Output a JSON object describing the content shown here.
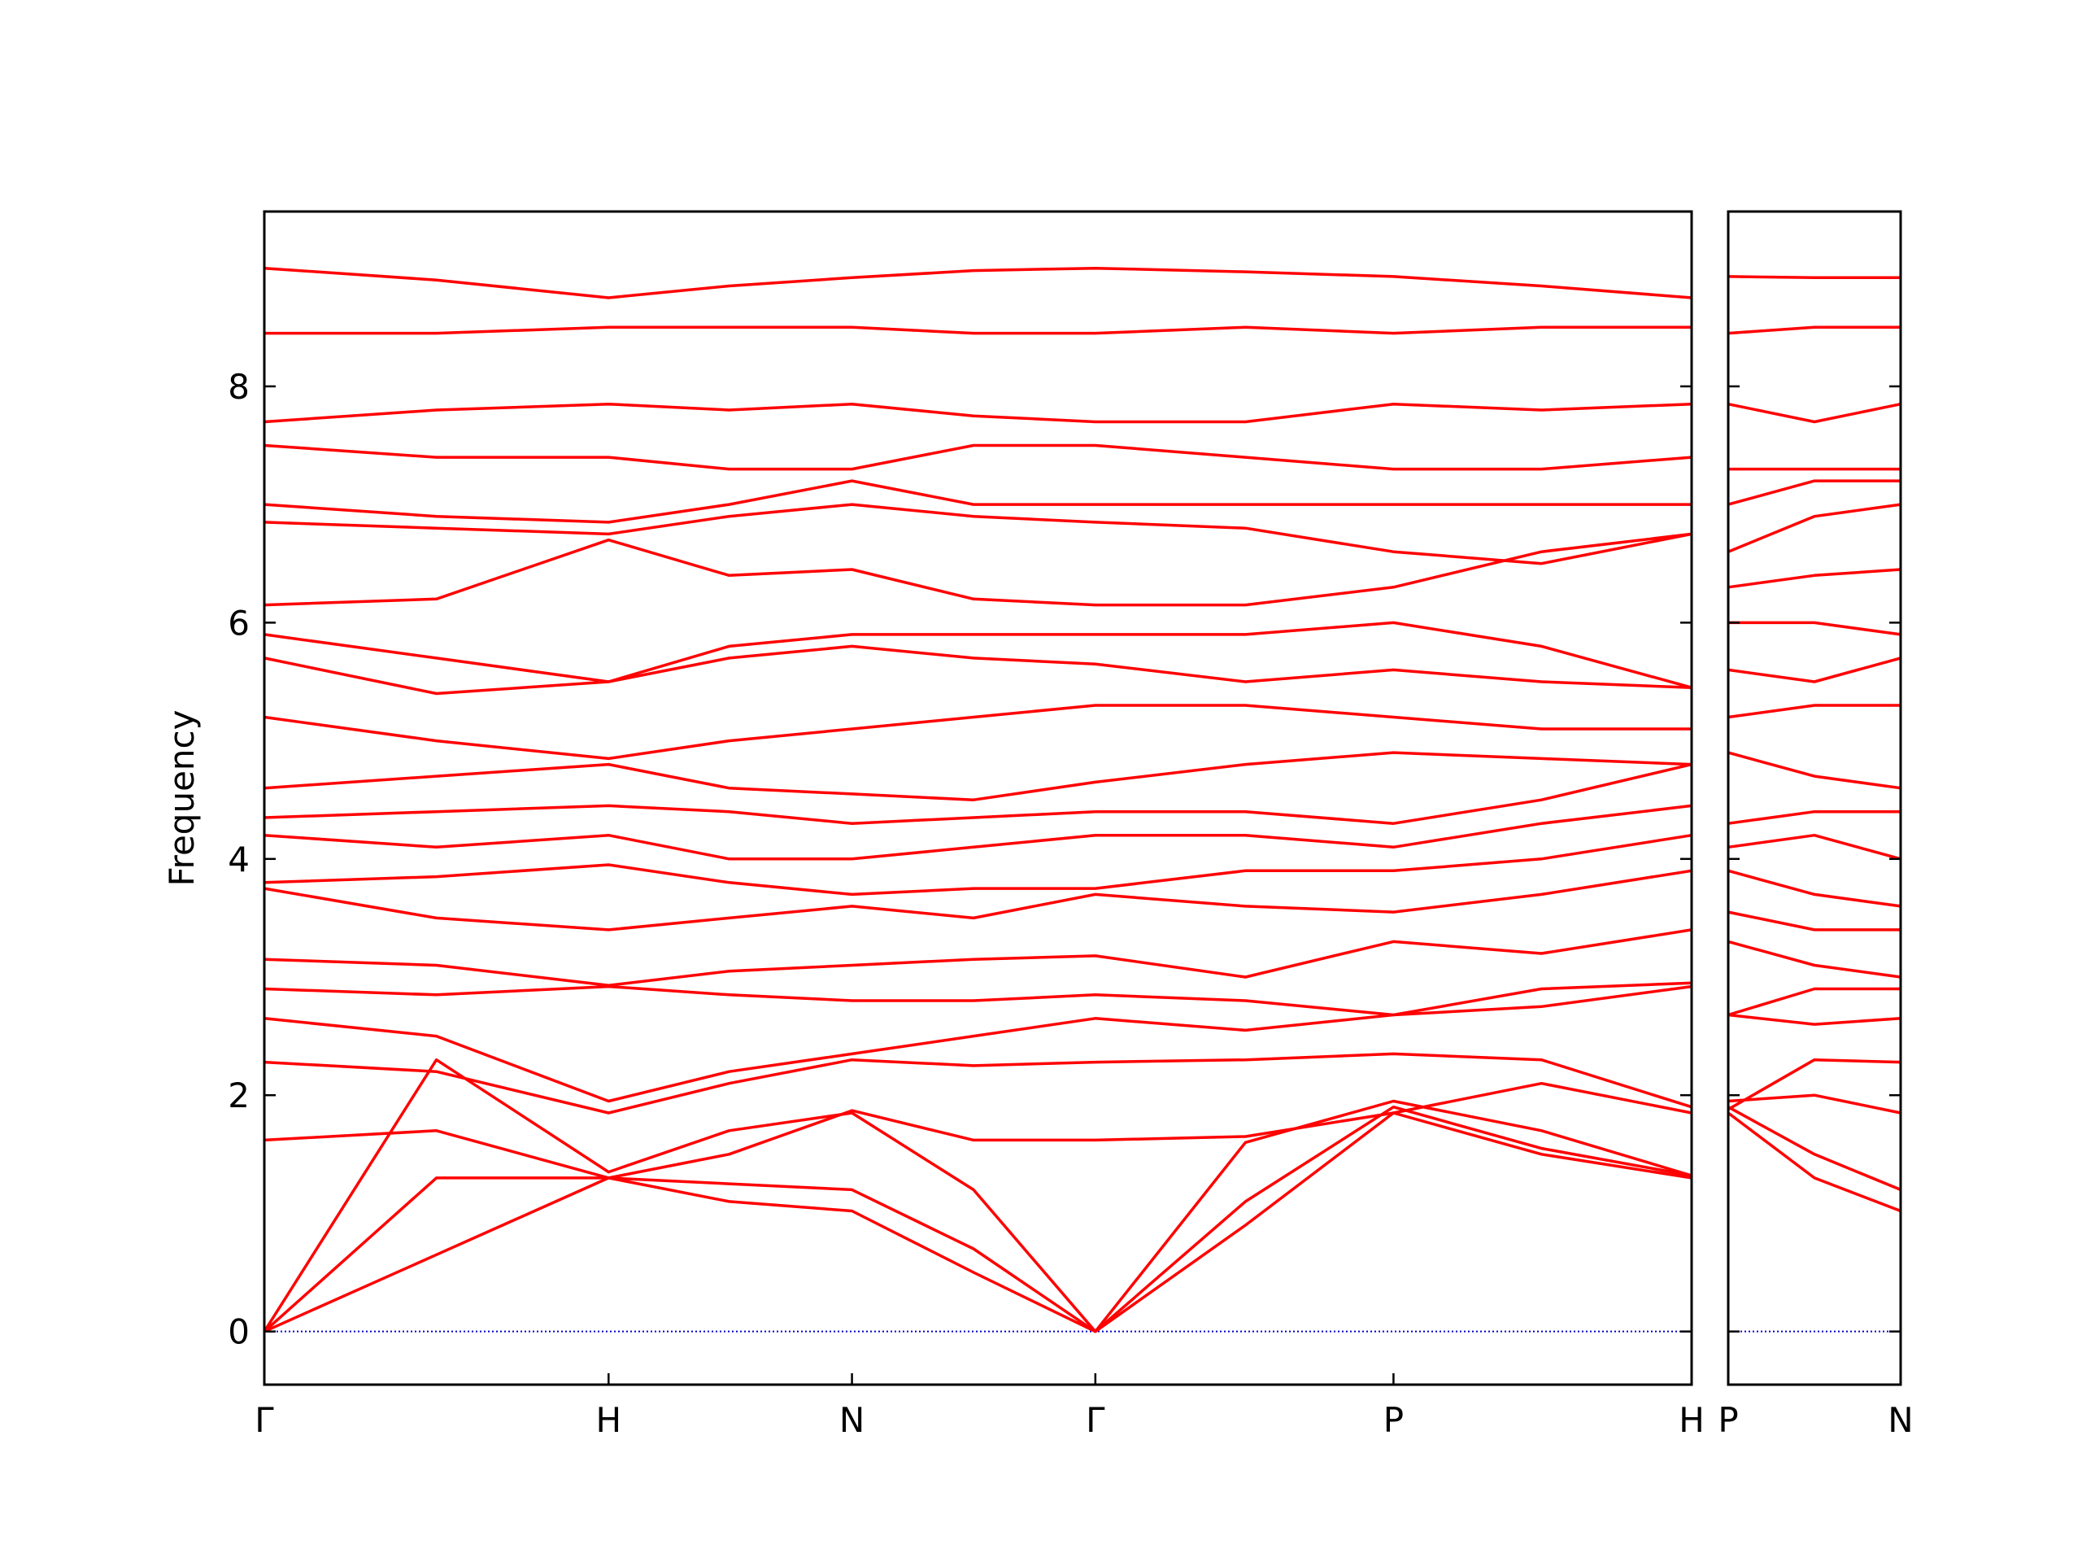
{
  "chart_data": [
    {
      "type": "line",
      "color": "#ff0000",
      "ylabel": "Frequency",
      "x": [
        0,
        0.5,
        1,
        1.35,
        1.707,
        2.06,
        2.414,
        2.85,
        3.28,
        3.71,
        4.146
      ],
      "xlim": [
        0,
        4.146
      ],
      "ylim": [
        -0.45,
        9.48
      ],
      "xticks": [
        {
          "value": 0,
          "label": "Γ"
        },
        {
          "value": 1,
          "label": "H"
        },
        {
          "value": 1.707,
          "label": "N"
        },
        {
          "value": 2.414,
          "label": "Γ"
        },
        {
          "value": 3.28,
          "label": "P"
        },
        {
          "value": 4.146,
          "label": "H"
        }
      ],
      "yticks": [
        0,
        2,
        4,
        6,
        8
      ],
      "series": [
        {
          "values": [
            0,
            0.65,
            1.3,
            1.1,
            1.02,
            0.5,
            0,
            0.9,
            1.85,
            1.5,
            1.3
          ]
        },
        {
          "values": [
            0,
            1.3,
            1.3,
            1.25,
            1.2,
            0.7,
            0,
            1.1,
            1.9,
            1.55,
            1.32
          ]
        },
        {
          "values": [
            0,
            2.3,
            1.35,
            1.7,
            1.85,
            1.2,
            0,
            1.6,
            1.95,
            1.7,
            1.32
          ]
        },
        {
          "values": [
            1.62,
            1.7,
            1.3,
            1.5,
            1.87,
            1.62,
            1.62,
            1.65,
            1.85,
            2.1,
            1.85
          ]
        },
        {
          "values": [
            2.28,
            2.2,
            1.85,
            2.1,
            2.3,
            2.25,
            2.28,
            2.3,
            2.35,
            2.3,
            1.9
          ]
        },
        {
          "values": [
            2.65,
            2.5,
            1.95,
            2.2,
            2.35,
            2.5,
            2.65,
            2.55,
            2.68,
            2.75,
            2.92
          ]
        },
        {
          "values": [
            2.9,
            2.85,
            2.92,
            2.85,
            2.8,
            2.8,
            2.85,
            2.8,
            2.68,
            2.9,
            2.95
          ]
        },
        {
          "values": [
            3.15,
            3.1,
            2.93,
            3.05,
            3.1,
            3.15,
            3.18,
            3.0,
            3.3,
            3.2,
            3.4
          ]
        },
        {
          "values": [
            3.75,
            3.5,
            3.4,
            3.5,
            3.6,
            3.5,
            3.7,
            3.6,
            3.55,
            3.7,
            3.9
          ]
        },
        {
          "values": [
            3.8,
            3.85,
            3.95,
            3.8,
            3.7,
            3.75,
            3.75,
            3.9,
            3.9,
            4.0,
            4.2
          ]
        },
        {
          "values": [
            4.2,
            4.1,
            4.2,
            4.0,
            4.0,
            4.1,
            4.2,
            4.2,
            4.1,
            4.3,
            4.45
          ]
        },
        {
          "values": [
            4.35,
            4.4,
            4.45,
            4.4,
            4.3,
            4.35,
            4.4,
            4.4,
            4.3,
            4.5,
            4.8
          ]
        },
        {
          "values": [
            4.6,
            4.7,
            4.8,
            4.6,
            4.55,
            4.5,
            4.65,
            4.8,
            4.9,
            4.85,
            4.8
          ]
        },
        {
          "values": [
            5.2,
            5.0,
            4.85,
            5.0,
            5.1,
            5.2,
            5.3,
            5.3,
            5.2,
            5.1,
            5.1
          ]
        },
        {
          "values": [
            5.7,
            5.4,
            5.5,
            5.7,
            5.8,
            5.7,
            5.65,
            5.5,
            5.6,
            5.5,
            5.45
          ]
        },
        {
          "values": [
            5.9,
            5.7,
            5.5,
            5.8,
            5.9,
            5.9,
            5.9,
            5.9,
            6.0,
            5.8,
            5.45
          ]
        },
        {
          "values": [
            6.15,
            6.2,
            6.7,
            6.4,
            6.45,
            6.2,
            6.15,
            6.15,
            6.3,
            6.6,
            6.75
          ]
        },
        {
          "values": [
            6.85,
            6.8,
            6.75,
            6.9,
            7.0,
            6.9,
            6.85,
            6.8,
            6.6,
            6.5,
            6.75
          ]
        },
        {
          "values": [
            7.0,
            6.9,
            6.85,
            7.0,
            7.2,
            7.0,
            7.0,
            7.0,
            7.0,
            7.0,
            7.0
          ]
        },
        {
          "values": [
            7.5,
            7.4,
            7.4,
            7.3,
            7.3,
            7.5,
            7.5,
            7.4,
            7.3,
            7.3,
            7.4
          ]
        },
        {
          "values": [
            7.7,
            7.8,
            7.85,
            7.8,
            7.85,
            7.75,
            7.7,
            7.7,
            7.85,
            7.8,
            7.85
          ]
        },
        {
          "values": [
            8.45,
            8.45,
            8.5,
            8.5,
            8.5,
            8.45,
            8.45,
            8.5,
            8.45,
            8.5,
            8.5
          ]
        },
        {
          "values": [
            9.0,
            8.9,
            8.75,
            8.85,
            8.92,
            8.98,
            9.0,
            8.97,
            8.93,
            8.85,
            8.75
          ]
        }
      ]
    },
    {
      "type": "line",
      "color": "#ff0000",
      "x": [
        0,
        0.25,
        0.5
      ],
      "xlim": [
        0,
        0.5
      ],
      "ylim": [
        -0.45,
        9.48
      ],
      "xticks": [
        {
          "value": 0,
          "label": "P"
        },
        {
          "value": 0.5,
          "label": "N"
        }
      ],
      "series": [
        {
          "values": [
            1.85,
            1.3,
            1.02
          ]
        },
        {
          "values": [
            1.9,
            1.5,
            1.2
          ]
        },
        {
          "values": [
            1.95,
            2.0,
            1.85
          ]
        },
        {
          "values": [
            1.88,
            2.3,
            2.28
          ]
        },
        {
          "values": [
            2.68,
            2.6,
            2.65
          ]
        },
        {
          "values": [
            2.68,
            2.9,
            2.9
          ]
        },
        {
          "values": [
            3.3,
            3.1,
            3.0
          ]
        },
        {
          "values": [
            3.55,
            3.4,
            3.4
          ]
        },
        {
          "values": [
            3.9,
            3.7,
            3.6
          ]
        },
        {
          "values": [
            4.1,
            4.2,
            4.0
          ]
        },
        {
          "values": [
            4.3,
            4.4,
            4.4
          ]
        },
        {
          "values": [
            4.9,
            4.7,
            4.6
          ]
        },
        {
          "values": [
            5.2,
            5.3,
            5.3
          ]
        },
        {
          "values": [
            5.6,
            5.5,
            5.7
          ]
        },
        {
          "values": [
            6.0,
            6.0,
            5.9
          ]
        },
        {
          "values": [
            6.3,
            6.4,
            6.45
          ]
        },
        {
          "values": [
            6.6,
            6.9,
            7.0
          ]
        },
        {
          "values": [
            7.0,
            7.2,
            7.2
          ]
        },
        {
          "values": [
            7.3,
            7.3,
            7.3
          ]
        },
        {
          "values": [
            7.85,
            7.7,
            7.85
          ]
        },
        {
          "values": [
            8.45,
            8.5,
            8.5
          ]
        },
        {
          "values": [
            8.93,
            8.92,
            8.92
          ]
        }
      ]
    }
  ]
}
